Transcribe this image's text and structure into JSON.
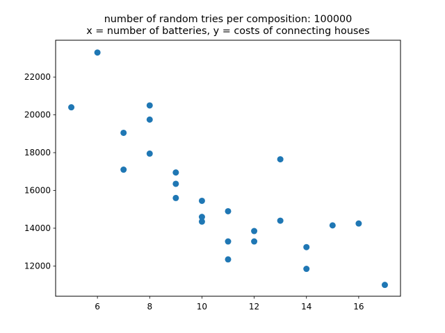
{
  "chart_data": {
    "type": "scatter",
    "title_lines": [
      "number of random tries per composition: 100000",
      "x = number of batteries, y = costs of connecting houses"
    ],
    "xlabel": "",
    "ylabel": "",
    "xlim": [
      4.4,
      17.6
    ],
    "ylim": [
      10400,
      23950
    ],
    "x_ticks": [
      6,
      8,
      10,
      12,
      14,
      16
    ],
    "x_tick_labels": [
      "6",
      "8",
      "10",
      "12",
      "14",
      "16"
    ],
    "y_ticks": [
      12000,
      14000,
      16000,
      18000,
      20000,
      22000
    ],
    "y_tick_labels": [
      "12000",
      "14000",
      "16000",
      "18000",
      "20000",
      "22000"
    ],
    "grid": false,
    "legend": "none",
    "marker_color": "#1f77b4",
    "points": [
      {
        "x": 5,
        "y": 20400
      },
      {
        "x": 6,
        "y": 23300
      },
      {
        "x": 7,
        "y": 19050
      },
      {
        "x": 7,
        "y": 17100
      },
      {
        "x": 8,
        "y": 20500
      },
      {
        "x": 8,
        "y": 19750
      },
      {
        "x": 8,
        "y": 17950
      },
      {
        "x": 9,
        "y": 16950
      },
      {
        "x": 9,
        "y": 16350
      },
      {
        "x": 9,
        "y": 15600
      },
      {
        "x": 10,
        "y": 15450
      },
      {
        "x": 10,
        "y": 14600
      },
      {
        "x": 10,
        "y": 14350
      },
      {
        "x": 11,
        "y": 14900
      },
      {
        "x": 11,
        "y": 13300
      },
      {
        "x": 11,
        "y": 12350
      },
      {
        "x": 12,
        "y": 13850
      },
      {
        "x": 12,
        "y": 13300
      },
      {
        "x": 13,
        "y": 17650
      },
      {
        "x": 13,
        "y": 14400
      },
      {
        "x": 14,
        "y": 13000
      },
      {
        "x": 14,
        "y": 11850
      },
      {
        "x": 15,
        "y": 14150
      },
      {
        "x": 16,
        "y": 14250
      },
      {
        "x": 17,
        "y": 11000
      }
    ]
  }
}
